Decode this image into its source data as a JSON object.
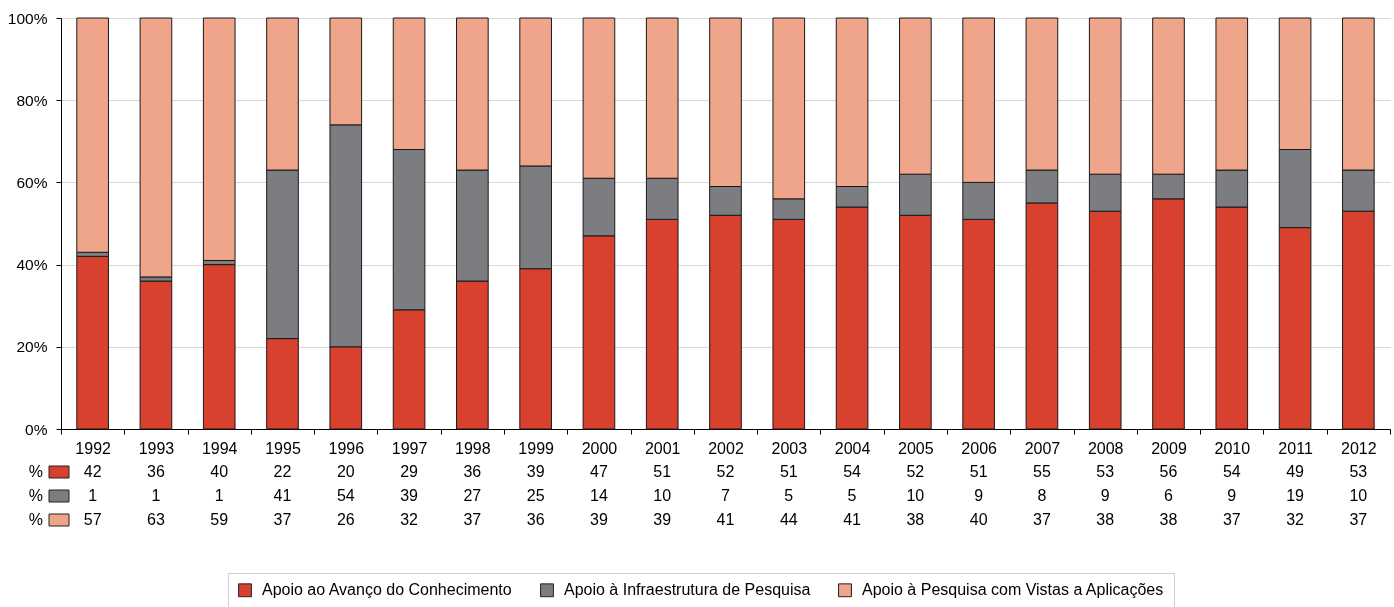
{
  "chart_data": {
    "type": "bar",
    "stacked": true,
    "categories": [
      "1992",
      "1993",
      "1994",
      "1995",
      "1996",
      "1997",
      "1998",
      "1999",
      "2000",
      "2001",
      "2002",
      "2003",
      "2004",
      "2005",
      "2006",
      "2007",
      "2008",
      "2009",
      "2010",
      "2011",
      "2012"
    ],
    "series": [
      {
        "name": "Apoio ao Avanço do Conhecimento",
        "color": "#d9412f",
        "values": [
          42,
          36,
          40,
          22,
          20,
          29,
          36,
          39,
          47,
          51,
          52,
          51,
          54,
          52,
          51,
          55,
          53,
          56,
          54,
          49,
          53
        ]
      },
      {
        "name": "Apoio à Infraestrutura de Pesquisa",
        "color": "#7b7d81",
        "values": [
          1,
          1,
          1,
          41,
          54,
          39,
          27,
          25,
          14,
          10,
          7,
          5,
          5,
          10,
          9,
          8,
          9,
          6,
          9,
          19,
          10
        ]
      },
      {
        "name": "Apoio à Pesquisa com Vistas a Aplicações",
        "color": "#eea58a",
        "values": [
          57,
          63,
          59,
          37,
          26,
          32,
          37,
          36,
          39,
          39,
          41,
          44,
          41,
          38,
          40,
          37,
          38,
          38,
          37,
          32,
          37
        ]
      }
    ],
    "ylim": [
      0,
      100
    ],
    "yticks": [
      {
        "value": 0,
        "label": "0%"
      },
      {
        "value": 20,
        "label": "20%"
      },
      {
        "value": 40,
        "label": "40%"
      },
      {
        "value": 60,
        "label": "60%"
      },
      {
        "value": 80,
        "label": "80%"
      },
      {
        "value": 100,
        "label": "100%"
      }
    ],
    "grid": "y",
    "legend": "bottom",
    "data_labels": true,
    "annotations": [
      "%",
      "%",
      "%"
    ]
  }
}
